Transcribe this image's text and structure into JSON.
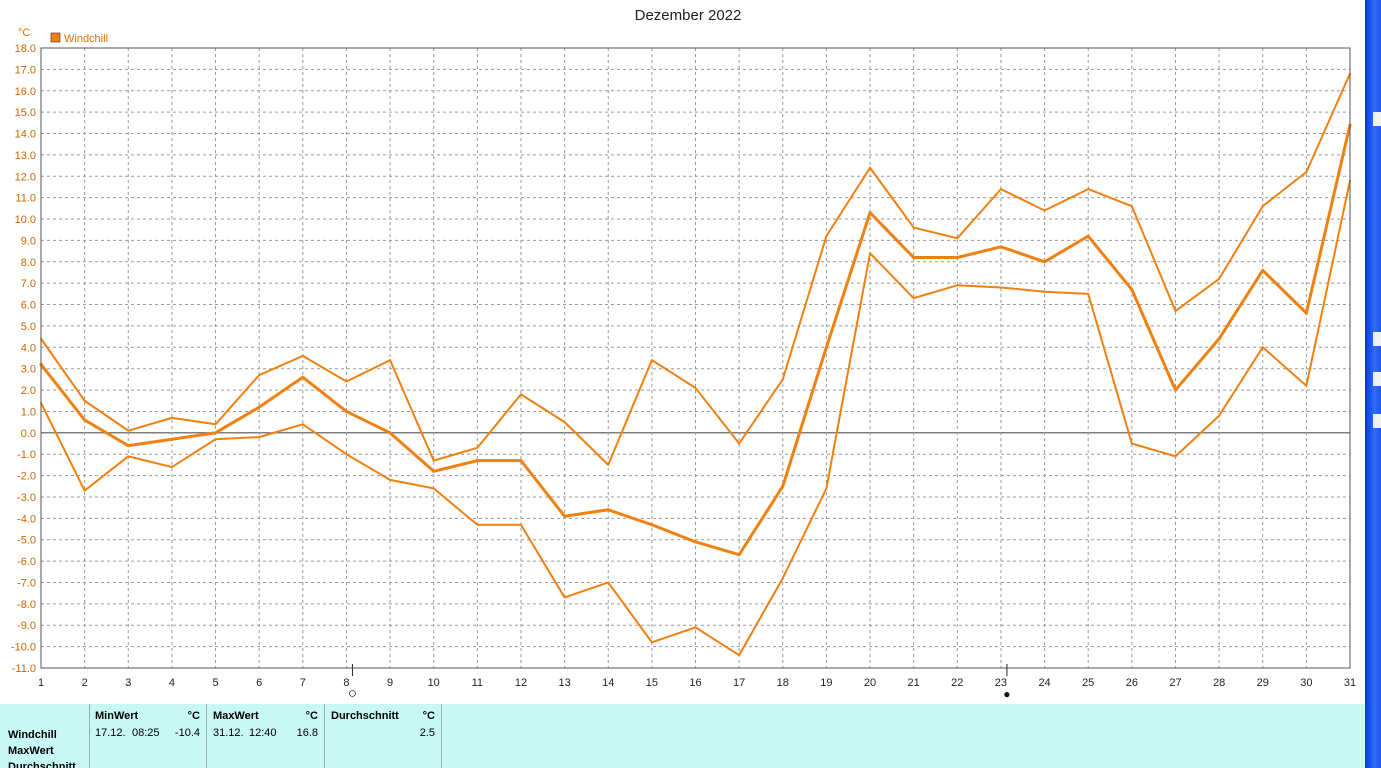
{
  "chart_data": {
    "type": "line",
    "title": "Dezember 2022",
    "y_unit": "°C",
    "legend": [
      {
        "label": "Windchill",
        "color": "#f08010"
      }
    ],
    "legend_placement": "top-left",
    "grid": true,
    "ylim": [
      -11,
      18
    ],
    "xlim": [
      1,
      31
    ],
    "x": [
      1,
      2,
      3,
      4,
      5,
      6,
      7,
      8,
      9,
      10,
      11,
      12,
      13,
      14,
      15,
      16,
      17,
      18,
      19,
      20,
      21,
      22,
      23,
      24,
      25,
      26,
      27,
      28,
      29,
      30,
      31
    ],
    "y_ticks": [
      "18.0",
      "17.0",
      "16.0",
      "15.0",
      "14.0",
      "13.0",
      "12.0",
      "11.0",
      "10.0",
      "9.0",
      "8.0",
      "7.0",
      "6.0",
      "5.0",
      "4.0",
      "3.0",
      "2.0",
      "1.0",
      "0.0",
      "-1.0",
      "-2.0",
      "-3.0",
      "-4.0",
      "-5.0",
      "-6.0",
      "-7.0",
      "-8.0",
      "-9.0",
      "-10.0",
      "-11.0"
    ],
    "series": [
      {
        "name": "Windchill",
        "role": "max",
        "color": "#f08010",
        "values": [
          4.4,
          1.5,
          0.1,
          0.7,
          0.4,
          2.7,
          3.6,
          2.4,
          3.4,
          -1.3,
          -0.7,
          1.8,
          0.5,
          -1.5,
          3.4,
          2.1,
          -0.5,
          2.5,
          9.2,
          12.4,
          9.6,
          9.1,
          11.4,
          10.4,
          11.4,
          10.6,
          5.7,
          7.2,
          10.6,
          12.2,
          16.8
        ]
      },
      {
        "name": "Windchill",
        "role": "avg",
        "color": "#f08010",
        "values": [
          3.2,
          0.6,
          -0.6,
          -0.3,
          0.0,
          1.2,
          2.6,
          1.0,
          0.0,
          -1.8,
          -1.3,
          -1.3,
          -3.9,
          -3.6,
          -4.3,
          -5.1,
          -5.7,
          -2.5,
          4.0,
          10.3,
          8.2,
          8.2,
          8.7,
          8.0,
          9.2,
          6.7,
          2.0,
          4.4,
          7.6,
          5.6,
          14.4
        ]
      },
      {
        "name": "Windchill",
        "role": "min",
        "color": "#f08010",
        "values": [
          1.4,
          -2.7,
          -1.1,
          -1.6,
          -0.3,
          -0.2,
          0.4,
          -1.0,
          -2.2,
          -2.6,
          -4.3,
          -4.3,
          -7.7,
          -7.0,
          -9.8,
          -9.1,
          -10.4,
          -6.8,
          -2.6,
          8.4,
          6.3,
          6.9,
          6.8,
          6.6,
          6.5,
          -0.5,
          -1.1,
          0.8,
          4.0,
          2.2,
          11.8
        ]
      }
    ],
    "moon_phases": [
      {
        "day": 8,
        "symbol": "○"
      },
      {
        "day": 23,
        "symbol": "●"
      }
    ]
  },
  "stats": {
    "rows": [
      "Windchill",
      "MaxWert",
      "Durchschnitt"
    ],
    "columns": [
      {
        "header": "MinWert",
        "unit": "°C",
        "date": "17.12.",
        "time": "08:25",
        "value": "-10.4"
      },
      {
        "header": "MaxWert",
        "unit": "°C",
        "date": "31.12.",
        "time": "12:40",
        "value": "16.8"
      },
      {
        "header": "Durchschnitt",
        "unit": "°C",
        "value": "2.5"
      }
    ]
  }
}
